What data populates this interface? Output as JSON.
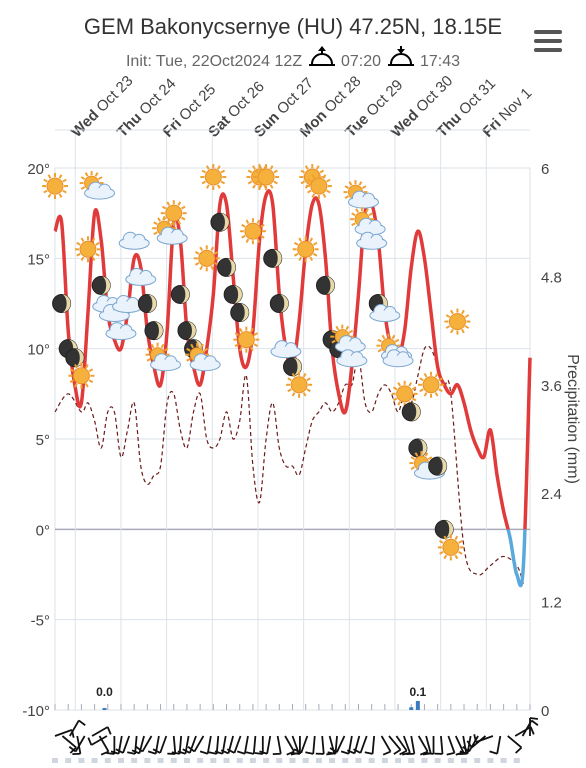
{
  "header": {
    "title": "GEM Bakonycsernye (HU) 47.25N, 18.15E",
    "init_label": "Init: Tue, 22Oct2024 12Z",
    "sunrise": "07:20",
    "sunset": "17:43"
  },
  "menu_icon": "hamburger-icon",
  "colors": {
    "temperature": "#e03a3a",
    "subzero": "#5aa9dd",
    "dewpoint": "#6b1a1a",
    "precip": "#3a7bbf",
    "grid": "#dde3ea"
  },
  "chart_data": {
    "type": "line",
    "day_labels": [
      {
        "dow": "Wed",
        "date": "Oct 23"
      },
      {
        "dow": "Thu",
        "date": "Oct 24"
      },
      {
        "dow": "Fri",
        "date": "Oct 25"
      },
      {
        "dow": "Sat",
        "date": "Oct 26"
      },
      {
        "dow": "Sun",
        "date": "Oct 27"
      },
      {
        "dow": "Mon",
        "date": "Oct 28"
      },
      {
        "dow": "Tue",
        "date": "Oct 29"
      },
      {
        "dow": "Wed",
        "date": "Oct 30"
      },
      {
        "dow": "Thu",
        "date": "Oct 31"
      },
      {
        "dow": "Fri",
        "date": "Nov 1"
      }
    ],
    "x_range_hours": [
      0,
      216
    ],
    "y_left": {
      "min": -10,
      "max": 20,
      "ticks": [
        "20°",
        "15°",
        "10°",
        "5°",
        "0°",
        "-5°",
        "-10°"
      ]
    },
    "y_right": {
      "label": "Precipitation (mm)",
      "min": 0,
      "max": 6,
      "ticks": [
        "6",
        "4.8",
        "3.6",
        "2.4",
        "1.2",
        "0"
      ]
    },
    "temperature": {
      "x": [
        0,
        3,
        6,
        9,
        12,
        15,
        18,
        21,
        24,
        27,
        30,
        33,
        36,
        39,
        42,
        45,
        48,
        51,
        54,
        57,
        60,
        63,
        66,
        69,
        72,
        75,
        78,
        81,
        84,
        87,
        90,
        93,
        96,
        99,
        102,
        105,
        108,
        111,
        114,
        117,
        120,
        123,
        126,
        129,
        132,
        135,
        138,
        141,
        144,
        147,
        150,
        153,
        156,
        159,
        162,
        165,
        168,
        171,
        174,
        177,
        180,
        183,
        186,
        189,
        192,
        195,
        198,
        201,
        204,
        207,
        210,
        213,
        216
      ],
      "y": [
        16.5,
        17,
        11,
        8,
        7,
        12,
        17.5,
        16,
        12,
        10.5,
        10,
        12,
        15,
        14.5,
        11,
        9,
        8,
        11,
        17,
        16,
        11,
        9,
        8,
        10,
        13,
        18,
        18,
        14,
        10,
        9,
        11,
        16,
        18.5,
        18,
        13,
        10,
        9,
        11.5,
        15.5,
        18,
        18,
        15,
        10,
        7.5,
        6.5,
        9,
        13,
        17.5,
        18,
        16,
        12,
        10,
        9.5,
        11,
        14.5,
        16.5,
        15,
        12,
        9,
        8,
        7.5,
        8,
        7,
        5.5,
        4.5,
        4,
        5.5,
        3,
        1,
        -0.5,
        -2.5,
        -2,
        9.5
      ]
    },
    "dewpoint": {
      "x": [
        0,
        6,
        12,
        15,
        18,
        21,
        24,
        27,
        30,
        33,
        36,
        39,
        42,
        45,
        48,
        51,
        54,
        57,
        60,
        63,
        66,
        69,
        72,
        75,
        78,
        81,
        84,
        87,
        90,
        93,
        96,
        99,
        102,
        105,
        108,
        111,
        114,
        117,
        120,
        123,
        126,
        129,
        132,
        135,
        138,
        141,
        144,
        147,
        150,
        153,
        156,
        159,
        162,
        165,
        168,
        171,
        174,
        177,
        180,
        186,
        192,
        198,
        204,
        210,
        213
      ],
      "y": [
        6.5,
        7.5,
        6.5,
        7,
        6,
        4.5,
        6.5,
        6.5,
        4,
        5.5,
        7,
        3.5,
        2.5,
        3,
        3.5,
        7,
        7.5,
        5.5,
        4.5,
        6.5,
        7.5,
        5,
        4.5,
        5,
        6.5,
        5,
        6,
        8.5,
        3.5,
        1.5,
        5,
        7,
        4.5,
        3.5,
        3.5,
        3,
        4.5,
        6,
        6.5,
        7,
        6.5,
        7,
        8,
        8,
        9.5,
        7,
        6.5,
        7.5,
        8,
        7.5,
        6.5,
        7.5,
        7,
        8.5,
        10,
        10,
        9,
        8,
        7.5,
        -1,
        -2.5,
        -2,
        -1.5,
        -2,
        -3
      ]
    },
    "precip_labels": [
      {
        "x": 22.5,
        "value": 0.0,
        "label": "0.0"
      },
      {
        "x": 165,
        "value": 0.1,
        "label": "0.1"
      }
    ],
    "precip_bars": [
      {
        "x": 22.5,
        "mm": 0.02
      },
      {
        "x": 162,
        "mm": 0.03
      },
      {
        "x": 165,
        "mm": 0.1
      }
    ],
    "sky_icons": [
      {
        "x": 0,
        "y": 19,
        "type": "sun"
      },
      {
        "x": 3,
        "y": 12.5,
        "type": "moon"
      },
      {
        "x": 6,
        "y": 10,
        "type": "moon"
      },
      {
        "x": 9,
        "y": 9.5,
        "type": "moon"
      },
      {
        "x": 12,
        "y": 8.5,
        "type": "sun"
      },
      {
        "x": 15,
        "y": 15.5,
        "type": "sun"
      },
      {
        "x": 18,
        "y": 19,
        "type": "sun-cloud"
      },
      {
        "x": 21,
        "y": 13.5,
        "type": "moon"
      },
      {
        "x": 24,
        "y": 12.5,
        "type": "cloud"
      },
      {
        "x": 27,
        "y": 12,
        "type": "cloud"
      },
      {
        "x": 30,
        "y": 11,
        "type": "cloud"
      },
      {
        "x": 33,
        "y": 12.5,
        "type": "cloud"
      },
      {
        "x": 36,
        "y": 16,
        "type": "cloud"
      },
      {
        "x": 39,
        "y": 14,
        "type": "cloud"
      },
      {
        "x": 42,
        "y": 12.5,
        "type": "moon"
      },
      {
        "x": 45,
        "y": 11,
        "type": "moon"
      },
      {
        "x": 48,
        "y": 9.5,
        "type": "sun-cloud"
      },
      {
        "x": 51,
        "y": 16.5,
        "type": "sun-cloud"
      },
      {
        "x": 54,
        "y": 17.5,
        "type": "sun"
      },
      {
        "x": 57,
        "y": 13,
        "type": "moon"
      },
      {
        "x": 60,
        "y": 11,
        "type": "moon"
      },
      {
        "x": 63,
        "y": 10,
        "type": "moon"
      },
      {
        "x": 66,
        "y": 9.5,
        "type": "sun-cloud"
      },
      {
        "x": 69,
        "y": 15,
        "type": "sun"
      },
      {
        "x": 72,
        "y": 19.5,
        "type": "sun"
      },
      {
        "x": 75,
        "y": 17,
        "type": "moon"
      },
      {
        "x": 78,
        "y": 14.5,
        "type": "moon"
      },
      {
        "x": 81,
        "y": 13,
        "type": "moon"
      },
      {
        "x": 84,
        "y": 12,
        "type": "moon"
      },
      {
        "x": 87,
        "y": 10.5,
        "type": "sun"
      },
      {
        "x": 90,
        "y": 16.5,
        "type": "sun"
      },
      {
        "x": 93,
        "y": 19.5,
        "type": "sun"
      },
      {
        "x": 96,
        "y": 19.5,
        "type": "sun"
      },
      {
        "x": 99,
        "y": 15,
        "type": "moon"
      },
      {
        "x": 102,
        "y": 12.5,
        "type": "moon"
      },
      {
        "x": 105,
        "y": 10,
        "type": "cloud"
      },
      {
        "x": 108,
        "y": 9,
        "type": "moon"
      },
      {
        "x": 111,
        "y": 8,
        "type": "sun"
      },
      {
        "x": 114,
        "y": 15.5,
        "type": "sun"
      },
      {
        "x": 117,
        "y": 19.5,
        "type": "sun"
      },
      {
        "x": 120,
        "y": 19,
        "type": "sun"
      },
      {
        "x": 123,
        "y": 13.5,
        "type": "moon"
      },
      {
        "x": 126,
        "y": 10.5,
        "type": "moon"
      },
      {
        "x": 129,
        "y": 10,
        "type": "moon"
      },
      {
        "x": 132,
        "y": 10.5,
        "type": "sun-cloud"
      },
      {
        "x": 135,
        "y": 9.5,
        "type": "cloud"
      },
      {
        "x": 138,
        "y": 18.5,
        "type": "sun-cloud"
      },
      {
        "x": 141,
        "y": 17,
        "type": "sun-cloud"
      },
      {
        "x": 144,
        "y": 16,
        "type": "cloud"
      },
      {
        "x": 147,
        "y": 12.5,
        "type": "moon"
      },
      {
        "x": 150,
        "y": 12,
        "type": "cloud"
      },
      {
        "x": 153,
        "y": 10,
        "type": "sun-cloud"
      },
      {
        "x": 156,
        "y": 9.5,
        "type": "cloud"
      },
      {
        "x": 159,
        "y": 7.5,
        "type": "sun"
      },
      {
        "x": 162,
        "y": 6.5,
        "type": "moon"
      },
      {
        "x": 165,
        "y": 4.5,
        "type": "moon"
      },
      {
        "x": 168,
        "y": 3.5,
        "type": "sun-cloud"
      },
      {
        "x": 171,
        "y": 8,
        "type": "sun"
      },
      {
        "x": 174,
        "y": 3.5,
        "type": "moon"
      },
      {
        "x": 177,
        "y": 0,
        "type": "moon"
      },
      {
        "x": 180,
        "y": -1,
        "type": "sun"
      },
      {
        "x": 183,
        "y": 11.5,
        "type": "sun"
      }
    ]
  }
}
